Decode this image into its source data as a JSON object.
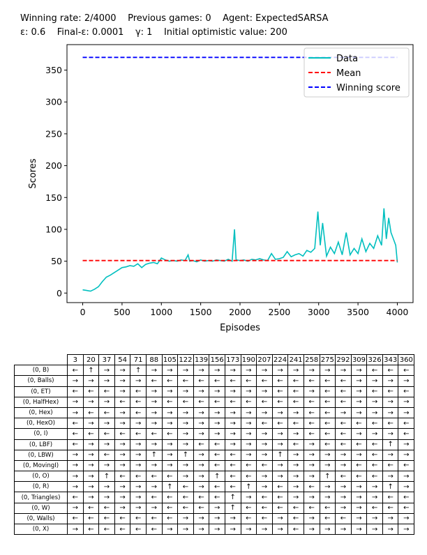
{
  "header": {
    "line1": "Winning rate: 2/4000    Previous games: 0    Agent: ExpectedSARSA",
    "line2": "ε: 0.6    Final-ε: 0.0001    γ: 1    Initial optimistic value: 200"
  },
  "chart_data": {
    "type": "line",
    "xlabel": "Episodes",
    "ylabel": "Scores",
    "xlim": [
      -200,
      4200
    ],
    "ylim": [
      -15,
      390
    ],
    "xticks": [
      0,
      500,
      1000,
      1500,
      2000,
      2500,
      3000,
      3500,
      4000
    ],
    "yticks": [
      0,
      50,
      100,
      150,
      200,
      250,
      300,
      350
    ],
    "legend_position": "top-right",
    "grid": false,
    "series": [
      {
        "name": "Data",
        "color": "#00bfbf",
        "style": "solid",
        "x": [
          0,
          50,
          100,
          150,
          200,
          250,
          300,
          350,
          400,
          450,
          500,
          550,
          600,
          650,
          700,
          750,
          800,
          850,
          900,
          950,
          1000,
          1050,
          1100,
          1150,
          1200,
          1250,
          1300,
          1340,
          1360,
          1400,
          1450,
          1500,
          1550,
          1600,
          1650,
          1700,
          1750,
          1800,
          1850,
          1900,
          1930,
          1950,
          2000,
          2050,
          2100,
          2150,
          2200,
          2250,
          2300,
          2350,
          2400,
          2450,
          2500,
          2550,
          2600,
          2650,
          2700,
          2750,
          2800,
          2850,
          2900,
          2950,
          2990,
          3020,
          3050,
          3100,
          3150,
          3200,
          3250,
          3300,
          3350,
          3400,
          3450,
          3500,
          3550,
          3600,
          3650,
          3700,
          3750,
          3800,
          3830,
          3860,
          3890,
          3920,
          3950,
          3980,
          4000
        ],
        "values": [
          5,
          4,
          3,
          6,
          10,
          18,
          25,
          28,
          32,
          36,
          40,
          41,
          43,
          42,
          46,
          40,
          45,
          47,
          48,
          46,
          55,
          52,
          50,
          51,
          50,
          52,
          51,
          60,
          50,
          51,
          49,
          52,
          50,
          51,
          50,
          52,
          51,
          50,
          53,
          50,
          100,
          52,
          51,
          52,
          50,
          53,
          52,
          54,
          52,
          51,
          62,
          53,
          54,
          56,
          65,
          57,
          60,
          62,
          58,
          67,
          64,
          70,
          128,
          75,
          110,
          58,
          72,
          62,
          80,
          60,
          95,
          60,
          70,
          62,
          85,
          65,
          78,
          70,
          90,
          75,
          133,
          85,
          118,
          95,
          85,
          75,
          48
        ]
      },
      {
        "name": "Mean",
        "color": "#ff0000",
        "style": "dashed",
        "x": [
          0,
          4000
        ],
        "values": [
          51,
          51
        ]
      },
      {
        "name": "Winning score",
        "color": "#0000ff",
        "style": "dashed",
        "x": [
          0,
          4000
        ],
        "values": [
          370,
          370
        ]
      }
    ]
  },
  "policy_table": {
    "columns": [
      "3",
      "20",
      "37",
      "54",
      "71",
      "88",
      "105",
      "122",
      "139",
      "156",
      "173",
      "190",
      "207",
      "224",
      "241",
      "258",
      "275",
      "292",
      "309",
      "326",
      "343",
      "360"
    ],
    "rows": [
      {
        "label": "(0, B)",
        "cells": [
          "←",
          "↑",
          "→",
          "→",
          "↑",
          "→",
          "→",
          "→",
          "→",
          "→",
          "→",
          "→",
          "→",
          "→",
          "→",
          "→",
          "→",
          "→",
          "→",
          "←",
          "←",
          "←"
        ]
      },
      {
        "label": "(0, Balls)",
        "cells": [
          "→",
          "→",
          "→",
          "→",
          "→",
          "←",
          "←",
          "←",
          "←",
          "←",
          "←",
          "←",
          "←",
          "←",
          "←",
          "←",
          "←",
          "←",
          "→",
          "→",
          "→",
          "→"
        ]
      },
      {
        "label": "(0, ET)",
        "cells": [
          "←",
          "←",
          "←",
          "→",
          "←",
          "→",
          "→",
          "→",
          "→",
          "→",
          "→",
          "→",
          "→",
          "←",
          "←",
          "→",
          "←",
          "←",
          "→",
          "←",
          "←",
          "←"
        ]
      },
      {
        "label": "(0, HalfHex)",
        "cells": [
          "→",
          "→",
          "→",
          "←",
          "←",
          "→",
          "←",
          "←",
          "←",
          "←",
          "←",
          "←",
          "←",
          "←",
          "←",
          "←",
          "←",
          "←",
          "→",
          "→",
          "→",
          "→"
        ]
      },
      {
        "label": "(0, Hex)",
        "cells": [
          "→",
          "←",
          "←",
          "→",
          "←",
          "→",
          "→",
          "→",
          "→",
          "→",
          "→",
          "→",
          "→",
          "→",
          "→",
          "←",
          "←",
          "→",
          "→",
          "→",
          "→",
          "→"
        ]
      },
      {
        "label": "(0, HexO)",
        "cells": [
          "←",
          "→",
          "→",
          "→",
          "→",
          "→",
          "→",
          "→",
          "→",
          "→",
          "→",
          "→",
          "←",
          "←",
          "←",
          "←",
          "←",
          "←",
          "←",
          "←",
          "←",
          "←"
        ]
      },
      {
        "label": "(0, I)",
        "cells": [
          "←",
          "←",
          "←",
          "←",
          "←",
          "←",
          "←",
          "→",
          "→",
          "→",
          "→",
          "→",
          "→",
          "→",
          "→",
          "←",
          "←",
          "←",
          "→",
          "→",
          "→",
          "←"
        ]
      },
      {
        "label": "(0, LBF)",
        "cells": [
          "←",
          "→",
          "→",
          "→",
          "→",
          "→",
          "→",
          "→",
          "←",
          "←",
          "→",
          "→",
          "→",
          "→",
          "←",
          "→",
          "←",
          "←",
          "←",
          "←",
          "↑",
          "→"
        ]
      },
      {
        "label": "(0, LBW)",
        "cells": [
          "→",
          "→",
          "←",
          "→",
          "→",
          "↑",
          "→",
          "↑",
          "→",
          "←",
          "←",
          "→",
          "→",
          "↑",
          "→",
          "→",
          "→",
          "→",
          "→",
          "←",
          "→",
          "→"
        ]
      },
      {
        "label": "(0, MovingI)",
        "cells": [
          "→",
          "→",
          "→",
          "→",
          "→",
          "→",
          "→",
          "→",
          "→",
          "←",
          "←",
          "←",
          "←",
          "→",
          "→",
          "→",
          "→",
          "→",
          "←",
          "←",
          "←",
          "←"
        ]
      },
      {
        "label": "(0, O)",
        "cells": [
          "→",
          "→",
          "↑",
          "←",
          "←",
          "←",
          "←",
          "→",
          "→",
          "↑",
          "←",
          "←",
          "→",
          "→",
          "→",
          "→",
          "↑",
          "←",
          "←",
          "←",
          "→",
          "→"
        ]
      },
      {
        "label": "(0, R)",
        "cells": [
          "→",
          "→",
          "→",
          "→",
          "→",
          "→",
          "↑",
          "←",
          "→",
          "←",
          "←",
          "↑",
          "→",
          "←",
          "→",
          "←",
          "→",
          "→",
          "→",
          "→",
          "↑",
          "→"
        ]
      },
      {
        "label": "(0, Triangles)",
        "cells": [
          "←",
          "→",
          "→",
          "→",
          "→",
          "←",
          "←",
          "←",
          "←",
          "←",
          "↑",
          "→",
          "←",
          "←",
          "→",
          "→",
          "→",
          "→",
          "→",
          "→",
          "←",
          "←"
        ]
      },
      {
        "label": "(0, W)",
        "cells": [
          "→",
          "←",
          "←",
          "→",
          "→",
          "→",
          "←",
          "←",
          "←",
          "→",
          "↑",
          "←",
          "←",
          "←",
          "←",
          "←",
          "←",
          "→",
          "→",
          "←",
          "←",
          "←"
        ]
      },
      {
        "label": "(0, Walls)",
        "cells": [
          "←",
          "←",
          "←",
          "←",
          "←",
          "←",
          "←",
          "→",
          "→",
          "→",
          "→",
          "←",
          "←",
          "→",
          "←",
          "→",
          "←",
          "←",
          "→",
          "→",
          "→",
          "→"
        ]
      },
      {
        "label": "(0, X)",
        "cells": [
          "→",
          "←",
          "←",
          "←",
          "←",
          "←",
          "→",
          "→",
          "→",
          "→",
          "→",
          "→",
          "→",
          "→",
          "←",
          "→",
          "→",
          "→",
          "→",
          "→",
          "→",
          "→"
        ]
      }
    ]
  }
}
